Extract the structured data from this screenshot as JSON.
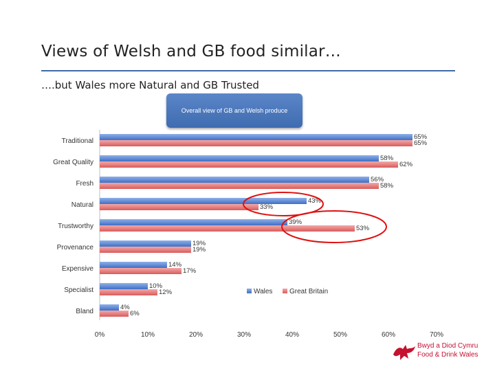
{
  "slide": {
    "title": "Views of Welsh and GB food similar…",
    "subtitle": "….but Wales more Natural and GB Trusted"
  },
  "chart_data": {
    "type": "bar",
    "orientation": "horizontal",
    "title": "Overall view of GB and Welsh produce",
    "categories": [
      "Traditional",
      "Great Quality",
      "Fresh",
      "Natural",
      "Trustworthy",
      "Provenance",
      "Expensive",
      "Specialist",
      "Bland"
    ],
    "series": [
      {
        "name": "Wales",
        "values": [
          65,
          58,
          56,
          43,
          39,
          19,
          14,
          10,
          4
        ],
        "labels": [
          "65%",
          "58%",
          "56%",
          "43%",
          "39%",
          "19%",
          "14%",
          "10%",
          "4%"
        ],
        "color": "#4a7bd0"
      },
      {
        "name": "Great Britain",
        "values": [
          65,
          62,
          58,
          33,
          53,
          19,
          17,
          12,
          6
        ],
        "labels": [
          "65%",
          "62%",
          "58%",
          "33%",
          "53%",
          "19%",
          "17%",
          "12%",
          "6%"
        ],
        "color": "#e07070"
      }
    ],
    "xlim": [
      0,
      70
    ],
    "x_ticks": [
      "0%",
      "10%",
      "20%",
      "30%",
      "40%",
      "50%",
      "60%",
      "70%"
    ],
    "grid": false,
    "legend_position": "lower-right-inside",
    "annotations": [
      "red-ellipse-natural",
      "red-ellipse-trustworthy"
    ]
  },
  "logo": {
    "line1": "Bwyd a Diod Cymru",
    "line2": "Food & Drink Wales",
    "color": "#c4122f"
  }
}
